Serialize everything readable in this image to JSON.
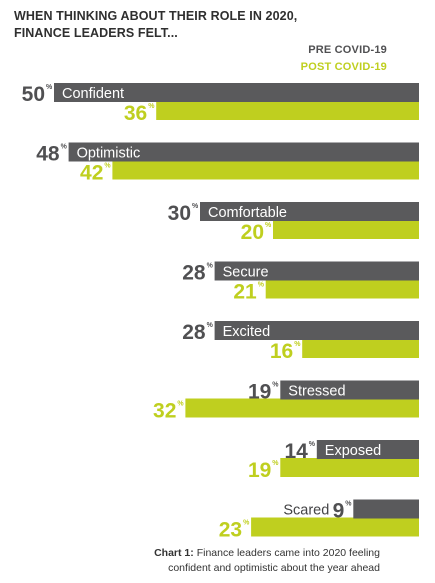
{
  "title_lines": [
    "WHEN THINKING ABOUT THEIR ROLE IN 2020,",
    "FINANCE LEADERS FELT..."
  ],
  "legend": {
    "pre": "PRE COVID-19",
    "post": "POST COVID-19"
  },
  "caption": {
    "label": "Chart 1:",
    "line1": "Finance leaders came into 2020 feeling",
    "line2": "confident and optimistic about the year ahead"
  },
  "colors": {
    "pre": "#5a5a5c",
    "post": "#bfcf1f",
    "pre_text": "#505052",
    "title": "#2f2f2f"
  },
  "chart_data": {
    "type": "bar",
    "orientation": "horizontal",
    "unit": "%",
    "categories": [
      "Confident",
      "Optimistic",
      "Comfortable",
      "Secure",
      "Excited",
      "Stressed",
      "Exposed",
      "Scared"
    ],
    "series": [
      {
        "name": "PRE COVID-19",
        "values": [
          50,
          48,
          30,
          28,
          28,
          19,
          14,
          9
        ]
      },
      {
        "name": "POST COVID-19",
        "values": [
          36,
          42,
          20,
          21,
          16,
          32,
          19,
          23
        ]
      }
    ],
    "xlim": [
      0,
      100
    ],
    "legend_position": "top-right",
    "grid": false
  }
}
